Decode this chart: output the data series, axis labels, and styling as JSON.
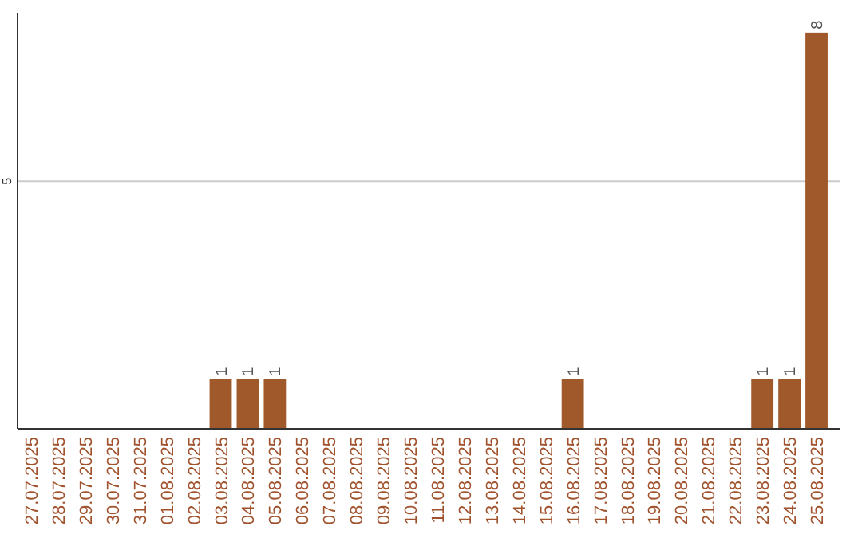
{
  "chart_data": {
    "type": "bar",
    "categories": [
      "27.07.2025",
      "28.07.2025",
      "29.07.2025",
      "30.07.2025",
      "31.07.2025",
      "01.08.2025",
      "02.08.2025",
      "03.08.2025",
      "04.08.2025",
      "05.08.2025",
      "06.08.2025",
      "07.08.2025",
      "08.08.2025",
      "09.08.2025",
      "10.08.2025",
      "11.08.2025",
      "12.08.2025",
      "13.08.2025",
      "14.08.2025",
      "15.08.2025",
      "16.08.2025",
      "17.08.2025",
      "18.08.2025",
      "19.08.2025",
      "20.08.2025",
      "21.08.2025",
      "22.08.2025",
      "23.08.2025",
      "24.08.2025",
      "25.08.2025"
    ],
    "values": [
      0,
      0,
      0,
      0,
      0,
      0,
      0,
      1,
      1,
      1,
      0,
      0,
      0,
      0,
      0,
      0,
      0,
      0,
      0,
      0,
      1,
      0,
      0,
      0,
      0,
      0,
      0,
      1,
      1,
      8
    ],
    "value_labels": [
      null,
      null,
      null,
      null,
      null,
      null,
      null,
      "1",
      "1",
      "1",
      null,
      null,
      null,
      null,
      null,
      null,
      null,
      null,
      null,
      null,
      "1",
      null,
      null,
      null,
      null,
      null,
      null,
      "1",
      "1",
      "8"
    ],
    "color": "#a0592b",
    "ylim": [
      0,
      8.4
    ],
    "yticks": [
      5
    ],
    "grid": "y"
  }
}
